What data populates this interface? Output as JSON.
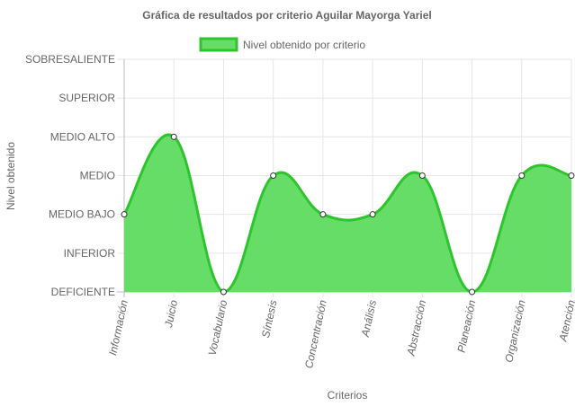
{
  "chart_data": {
    "type": "area",
    "title": "Gráfica de resultados por criterio Aguilar Mayorga Yariel",
    "xlabel": "Criterios",
    "ylabel": "Nivel obtenido",
    "categories": [
      "Información",
      "Juicio",
      "Vocabulario",
      "Síntesis",
      "Concentración",
      "Análisis",
      "Abstracción",
      "Planeación",
      "Organización",
      "Atención"
    ],
    "y_levels": [
      "DEFICIENTE",
      "INFERIOR",
      "MEDIO BAJO",
      "MEDIO",
      "MEDIO ALTO",
      "SUPERIOR",
      "SOBRESALIENTE"
    ],
    "ylim": [
      0,
      6
    ],
    "series": [
      {
        "name": "Nivel obtenido por criterio",
        "values": [
          2,
          4,
          0,
          3,
          2,
          2,
          3,
          0,
          3,
          3
        ]
      }
    ],
    "legend_position": "top",
    "grid": true,
    "colors": {
      "fill": "#66dd66",
      "line": "#2ec42e",
      "point_fill": "#ffffff",
      "point_stroke": "#333333"
    }
  }
}
